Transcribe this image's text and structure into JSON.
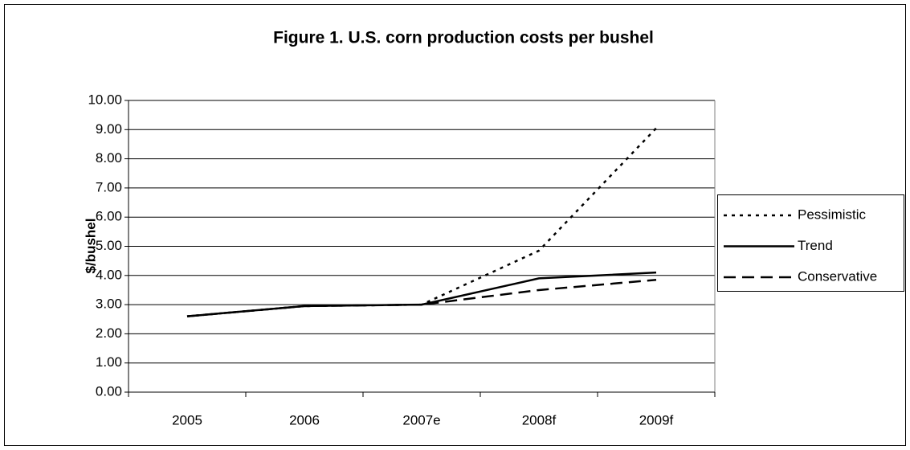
{
  "chart_data": {
    "type": "line",
    "title": "Figure 1. U.S. corn production costs per bushel",
    "y_label": "$/bushel",
    "categories": [
      "2005",
      "2006",
      "2007e",
      "2008f",
      "2009f"
    ],
    "series": [
      {
        "name": "Pessimistic",
        "color": "#000000",
        "dash": "dotted",
        "values": [
          2.6,
          2.95,
          3.0,
          4.85,
          9.05
        ]
      },
      {
        "name": "Trend",
        "color": "#000000",
        "dash": "solid",
        "values": [
          2.6,
          2.95,
          3.0,
          3.9,
          4.1
        ]
      },
      {
        "name": "Conservative",
        "color": "#000000",
        "dash": "dashed",
        "values": [
          2.6,
          2.95,
          3.0,
          3.5,
          3.85
        ]
      }
    ],
    "ylim": [
      0,
      10
    ],
    "yticks": [
      {
        "value": 0,
        "label": "0.00"
      },
      {
        "value": 1,
        "label": "1.00"
      },
      {
        "value": 2,
        "label": "2.00"
      },
      {
        "value": 3,
        "label": "3.00"
      },
      {
        "value": 4,
        "label": "4.00"
      },
      {
        "value": 5,
        "label": "5.00"
      },
      {
        "value": 6,
        "label": "6.00"
      },
      {
        "value": 7,
        "label": "7.00"
      },
      {
        "value": 8,
        "label": "8.00"
      },
      {
        "value": 9,
        "label": "9.00"
      },
      {
        "value": 10,
        "label": "10.00"
      }
    ],
    "grid": true,
    "legend": "right"
  }
}
